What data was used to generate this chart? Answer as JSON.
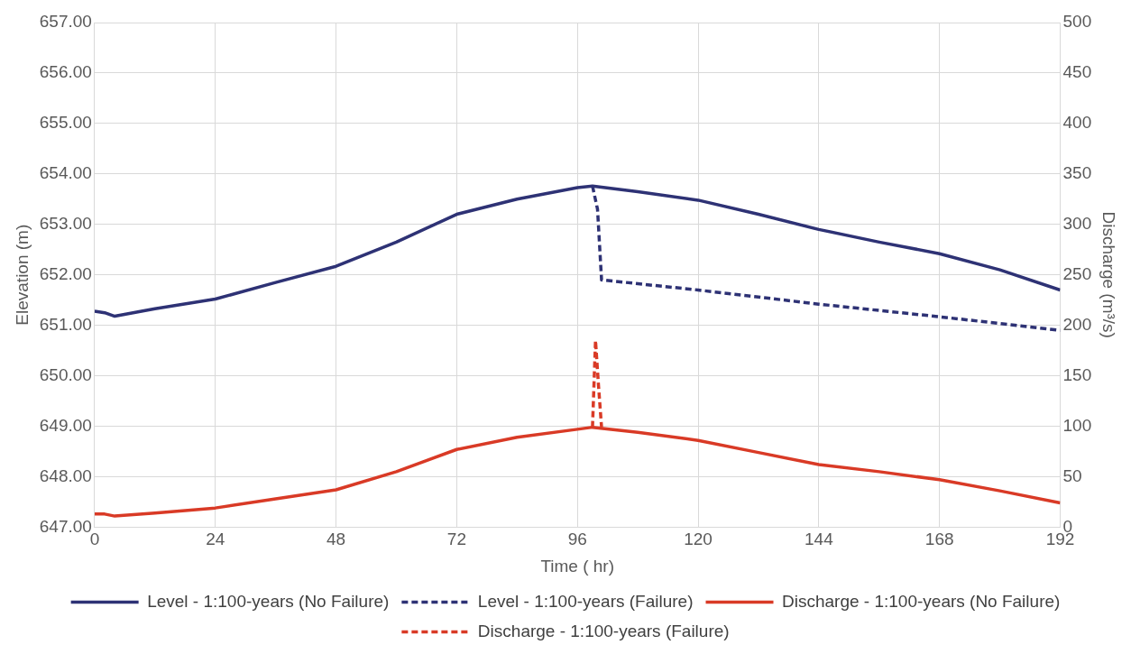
{
  "chart_data": {
    "type": "line",
    "xlabel": "Time ( hr)",
    "ylabel": "Elevation (m)",
    "y2label": "Discharge (m³/s)",
    "xlim": [
      0,
      192
    ],
    "xticks": [
      0,
      24,
      48,
      72,
      96,
      120,
      144,
      168,
      192
    ],
    "ylim": [
      647,
      657
    ],
    "yticks": [
      {
        "value": 647,
        "label": "647.00"
      },
      {
        "value": 648,
        "label": "648.00"
      },
      {
        "value": 649,
        "label": "649.00"
      },
      {
        "value": 650,
        "label": "650.00"
      },
      {
        "value": 651,
        "label": "651.00"
      },
      {
        "value": 652,
        "label": "652.00"
      },
      {
        "value": 653,
        "label": "653.00"
      },
      {
        "value": 654,
        "label": "654.00"
      },
      {
        "value": 655,
        "label": "655.00"
      },
      {
        "value": 656,
        "label": "656.00"
      },
      {
        "value": 657,
        "label": "657.00"
      }
    ],
    "y2lim": [
      0,
      500
    ],
    "y2ticks": [
      0,
      50,
      100,
      150,
      200,
      250,
      300,
      350,
      400,
      450,
      500
    ],
    "grid": true,
    "legend": "bottom",
    "marker": "none",
    "series": [
      {
        "name": "Level - 1:100-years (No Failure)",
        "color": "#2e3275",
        "line_style": "solid",
        "x": [
          0,
          2,
          4,
          12,
          24,
          36,
          48,
          60,
          72,
          84,
          96,
          99,
          108,
          120,
          132,
          144,
          156,
          168,
          180,
          192
        ],
        "values": [
          651.28,
          651.25,
          651.18,
          651.33,
          651.52,
          651.85,
          652.17,
          652.65,
          653.2,
          653.5,
          653.73,
          653.76,
          653.65,
          653.48,
          653.2,
          652.9,
          652.65,
          652.42,
          652.1,
          651.7
        ]
      },
      {
        "name": "Level - 1:100-years (Failure)",
        "color": "#2e3275",
        "line_style": "dashed",
        "x": [
          99,
          100,
          100.8,
          120,
          144,
          168,
          192
        ],
        "values": [
          653.76,
          653.3,
          651.9,
          651.7,
          651.42,
          651.17,
          650.9
        ]
      },
      {
        "name": "Discharge - 1:100-years (No Failure)",
        "color": "#d93a26",
        "line_style": "solid",
        "axis": "y2",
        "x": [
          0,
          2,
          4,
          12,
          24,
          36,
          48,
          60,
          72,
          84,
          96,
          99,
          108,
          120,
          132,
          144,
          156,
          168,
          180,
          192
        ],
        "values": [
          13,
          13,
          11,
          14,
          19,
          28,
          37,
          55,
          77,
          89,
          97,
          99,
          94,
          86,
          74,
          62,
          55,
          47,
          36,
          24
        ]
      },
      {
        "name": "Discharge - 1:100-years (Failure)",
        "color": "#d93a26",
        "line_style": "dashed",
        "axis": "y2",
        "x": [
          99,
          99.6,
          100.2,
          100.8
        ],
        "values": [
          99,
          185,
          140,
          99
        ]
      }
    ]
  }
}
